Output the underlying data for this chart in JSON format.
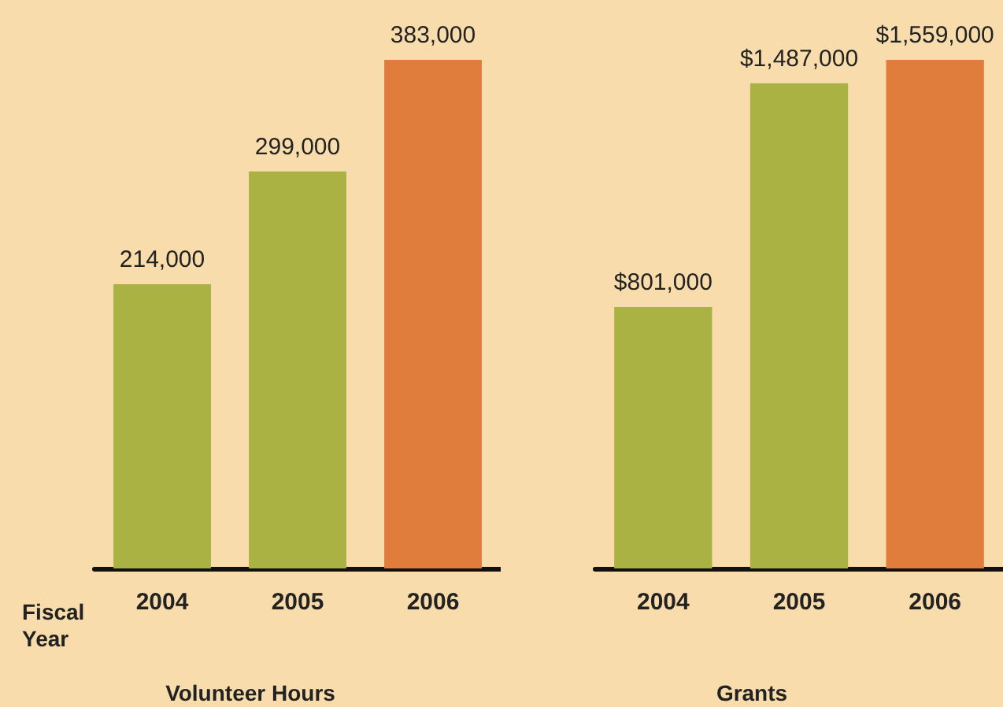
{
  "chart_data": [
    {
      "type": "bar",
      "title": "Volunteer Hours",
      "xlabel": "Fiscal Year",
      "categories": [
        "2004",
        "2005",
        "2006"
      ],
      "values": [
        214000,
        299000,
        383000
      ],
      "colors": [
        "#a9b243",
        "#a9b243",
        "#e07c3c"
      ],
      "value_labels": [
        "214,000",
        "299,000",
        "383,000"
      ]
    },
    {
      "type": "bar",
      "title": "Grants",
      "categories": [
        "2004",
        "2005",
        "2006"
      ],
      "values": [
        801000,
        1487000,
        1559000
      ],
      "colors": [
        "#a9b243",
        "#a9b243",
        "#e07c3c"
      ],
      "value_labels": [
        "$801,000",
        "$1,487,000",
        "$1,559,000"
      ]
    }
  ]
}
